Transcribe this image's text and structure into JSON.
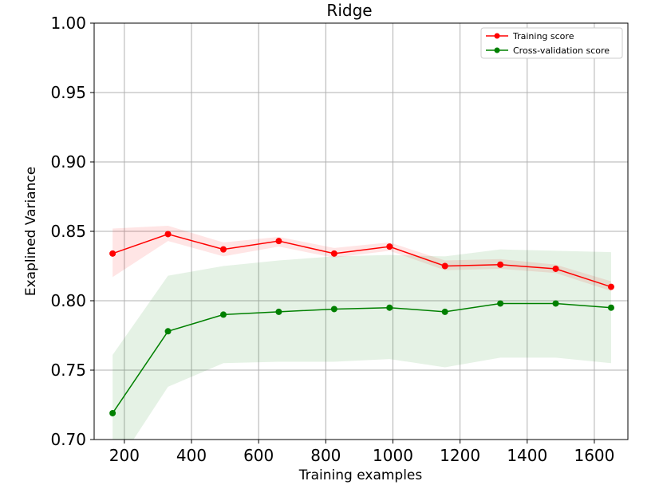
{
  "chart_data": {
    "type": "line",
    "title": "Ridge",
    "xlabel": "Training examples",
    "ylabel": "Exaplined Variance",
    "xlim": [
      110,
      1700
    ],
    "ylim": [
      0.7,
      1.0
    ],
    "xticks": [
      200,
      400,
      600,
      800,
      1000,
      1200,
      1400,
      1600
    ],
    "yticks": [
      "0.70",
      "0.75",
      "0.80",
      "0.85",
      "0.90",
      "0.95",
      "1.00"
    ],
    "grid": true,
    "legend_position": "top-right",
    "x": [
      165,
      330,
      495,
      660,
      825,
      990,
      1155,
      1320,
      1485,
      1650
    ],
    "series": [
      {
        "name": "Training score",
        "color": "#ff0000",
        "band_color": "#ff0000",
        "values": [
          0.834,
          0.848,
          0.837,
          0.843,
          0.834,
          0.839,
          0.825,
          0.826,
          0.823,
          0.81
        ],
        "lower": [
          0.817,
          0.843,
          0.832,
          0.839,
          0.831,
          0.836,
          0.822,
          0.823,
          0.82,
          0.807
        ],
        "upper": [
          0.852,
          0.854,
          0.842,
          0.846,
          0.838,
          0.842,
          0.829,
          0.83,
          0.826,
          0.814
        ]
      },
      {
        "name": "Cross-validation score",
        "color": "#008000",
        "band_color": "#008000",
        "values": [
          0.719,
          0.778,
          0.79,
          0.792,
          0.794,
          0.795,
          0.792,
          0.798,
          0.798,
          0.795
        ],
        "lower": [
          0.677,
          0.738,
          0.755,
          0.756,
          0.756,
          0.758,
          0.752,
          0.759,
          0.759,
          0.755
        ],
        "upper": [
          0.761,
          0.818,
          0.825,
          0.829,
          0.832,
          0.833,
          0.832,
          0.837,
          0.836,
          0.835
        ]
      }
    ]
  }
}
